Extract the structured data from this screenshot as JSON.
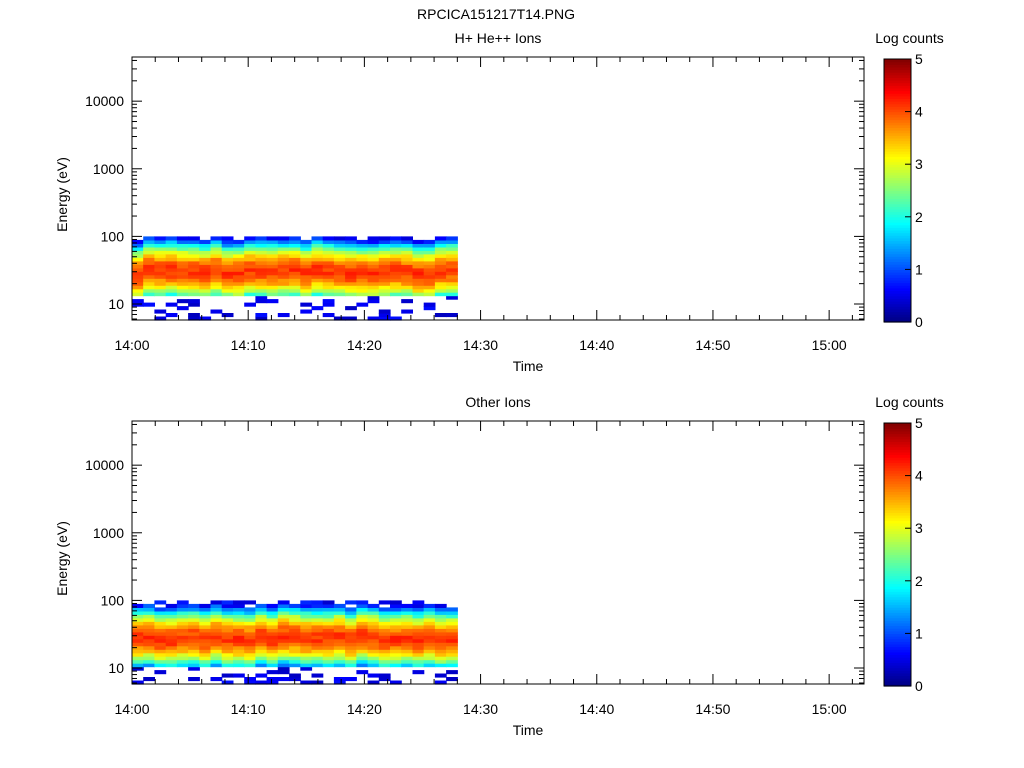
{
  "figure": {
    "title": "RPCICA151217T14.PNG"
  },
  "chart_data": [
    {
      "type": "heatmap",
      "title": "H+ He++ Ions",
      "xlabel": "Time",
      "ylabel": "Energy (eV)",
      "x_ticks": [
        "14:00",
        "14:10",
        "14:20",
        "14:30",
        "14:40",
        "14:50",
        "15:00"
      ],
      "y_ticks": [
        "10",
        "100",
        "1000",
        "10000"
      ],
      "y_scale": "log",
      "ylim": [
        5.8,
        45000
      ],
      "xlim": [
        "14:00",
        "15:03"
      ],
      "data_range": [
        "14:00",
        "14:28"
      ],
      "energy_core_eV": [
        15,
        90
      ],
      "peak_energy_eV": 30,
      "colorbar": {
        "label": "Log counts",
        "ticks": [
          "0",
          "1",
          "2",
          "3",
          "4",
          "5"
        ],
        "range": [
          0,
          5
        ],
        "colormap": "jet"
      }
    },
    {
      "type": "heatmap",
      "title": "Other Ions",
      "xlabel": "Time",
      "ylabel": "Energy (eV)",
      "x_ticks": [
        "14:00",
        "14:10",
        "14:20",
        "14:30",
        "14:40",
        "14:50",
        "15:00"
      ],
      "y_ticks": [
        "10",
        "100",
        "1000",
        "10000"
      ],
      "y_scale": "log",
      "ylim": [
        5.8,
        45000
      ],
      "xlim": [
        "14:00",
        "15:03"
      ],
      "data_range": [
        "14:00",
        "14:28"
      ],
      "energy_core_eV": [
        12,
        90
      ],
      "peak_energy_eV": 28,
      "colorbar": {
        "label": "Log counts",
        "ticks": [
          "0",
          "1",
          "2",
          "3",
          "4",
          "5"
        ],
        "range": [
          0,
          5
        ],
        "colormap": "jet"
      }
    }
  ]
}
